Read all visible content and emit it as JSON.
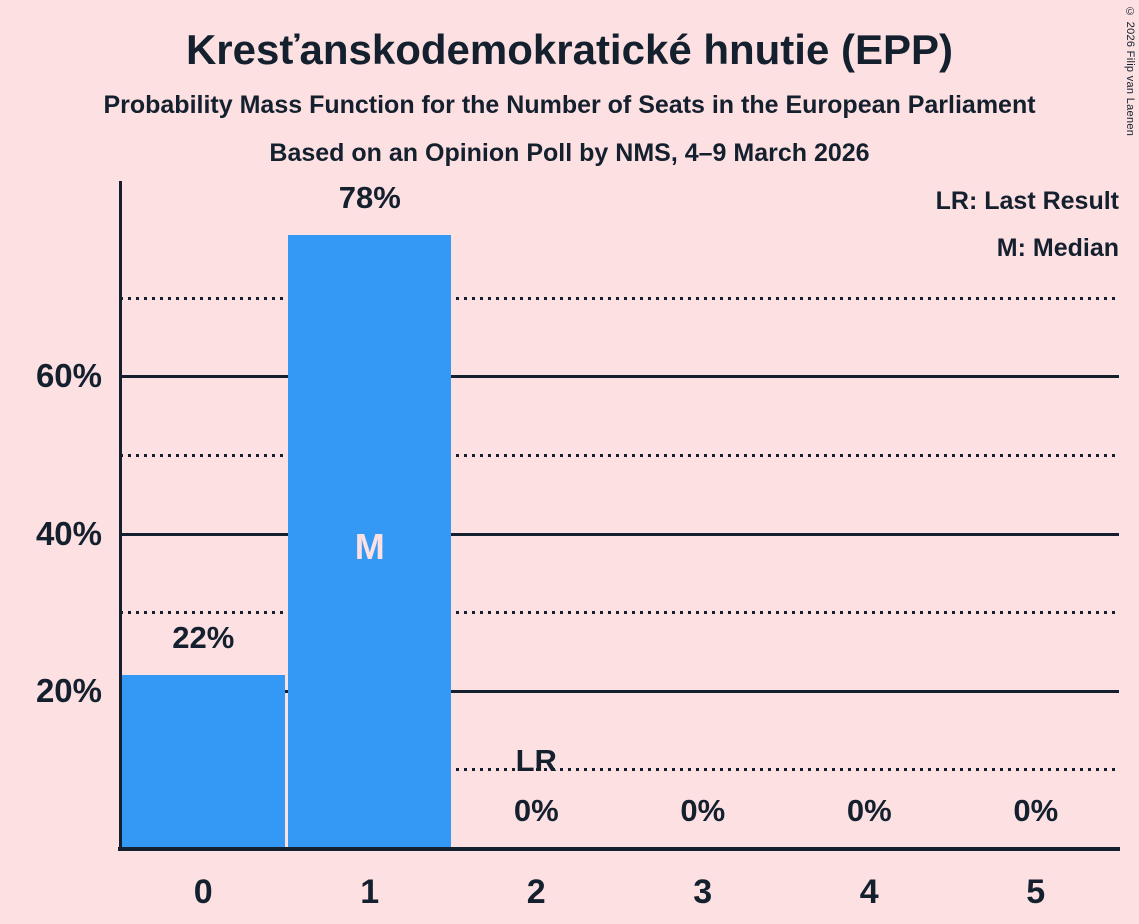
{
  "title": "Kresťanskodemokratické hnutie (EPP)",
  "subtitle1": "Probability Mass Function for the Number of Seats in the European Parliament",
  "subtitle2": "Based on an Opinion Poll by NMS, 4–9 March 2026",
  "copyright": "© 2026 Filip van Laenen",
  "legend": {
    "last_result": "LR: Last Result",
    "median": "M: Median"
  },
  "colors": {
    "background": "#fce0e2",
    "bar": "#3399f5",
    "text": "#14202e",
    "bar_inner_label": "#fce0e2"
  },
  "chart_data": {
    "type": "bar",
    "title": "Probability Mass Function for the Number of Seats in the European Parliament",
    "xlabel": "",
    "ylabel": "",
    "categories": [
      "0",
      "1",
      "2",
      "3",
      "4",
      "5"
    ],
    "values": [
      22,
      78,
      0,
      0,
      0,
      0
    ],
    "value_labels": [
      "22%",
      "78%",
      "0%",
      "0%",
      "0%",
      "0%"
    ],
    "ylim": [
      0,
      84.9
    ],
    "y_solid_gridlines": [
      20,
      40,
      60
    ],
    "y_dotted_gridlines": [
      10,
      30,
      50,
      70
    ],
    "y_tick_values": [
      20,
      40,
      60
    ],
    "y_tick_labels": [
      "20%",
      "40%",
      "60%"
    ],
    "grid": "on",
    "legend_position": "top-right",
    "median_category_index": 1,
    "median_label": "M",
    "last_result_category_index": 2,
    "last_result_label": "LR"
  }
}
